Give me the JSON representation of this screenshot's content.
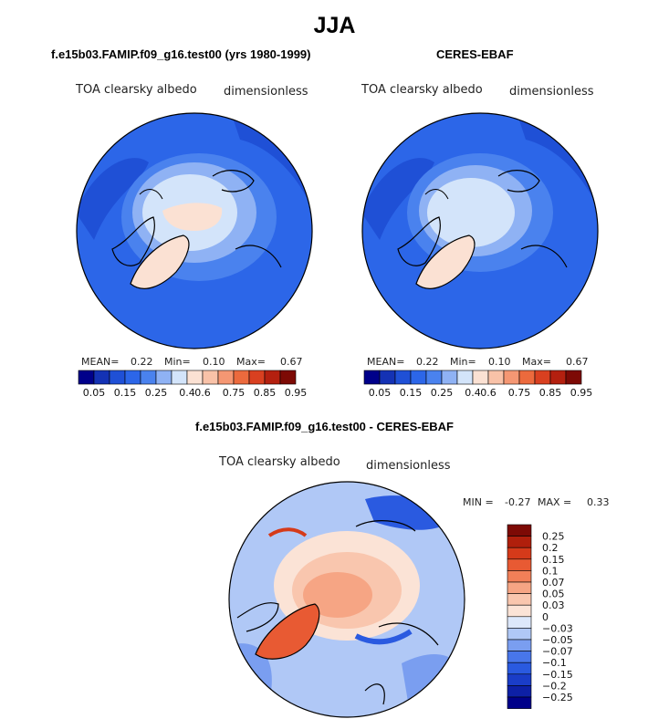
{
  "header": {
    "title": "JJA"
  },
  "colors": {
    "abs_palette": [
      "#00008a",
      "#1432b4",
      "#1f50d6",
      "#2c66e8",
      "#4a82ee",
      "#8fb2f4",
      "#d3e4fa",
      "#fbe1d3",
      "#f9c2a8",
      "#f59773",
      "#ec6a3d",
      "#d94020",
      "#b4200f",
      "#7d0a05"
    ],
    "diff_palette": [
      "#00008a",
      "#0d20a6",
      "#1a3dc8",
      "#2a5ae0",
      "#4876ea",
      "#7a9ef0",
      "#b0c8f6",
      "#dde8fb",
      "#fbe3d6",
      "#f9c6ae",
      "#f6a584",
      "#f17f58",
      "#e85a33",
      "#d53a1a",
      "#b01f0c",
      "#7d0a05"
    ],
    "ocean": "#2c66e8",
    "land": "#4a82ee",
    "arctic": "#d6e6f9",
    "greenland": "#fbdccd"
  },
  "panels": [
    {
      "title": "f.e15b03.FAMIP.f09_g16.test00 (yrs 1980-1999)",
      "field": "TOA clearsky albedo",
      "units": "dimensionless",
      "stats": {
        "mean_label": "MEAN=",
        "mean": "0.22",
        "min_label": "Min=",
        "min": "0.10",
        "max_label": "Max=",
        "max": "0.67"
      }
    },
    {
      "title": "CERES-EBAF",
      "field": "TOA clearsky albedo",
      "units": "dimensionless",
      "stats": {
        "mean_label": "MEAN=",
        "mean": "0.22",
        "min_label": "Min=",
        "min": "0.10",
        "max_label": "Max=",
        "max": "0.67"
      }
    }
  ],
  "diff_panel": {
    "title": "f.e15b03.FAMIP.f09_g16.test00 - CERES-EBAF",
    "field": "TOA clearsky albedo",
    "units": "dimensionless",
    "stats": {
      "min_label": "MIN =",
      "min": "-0.27",
      "max_label": "MAX =",
      "max": "0.33"
    }
  },
  "chart_data": [
    {
      "type": "heatmap",
      "projection": "north polar stereographic",
      "colorbar": {
        "orientation": "horizontal",
        "levels": [
          "0.05",
          "0.15",
          "0.25",
          "0.4",
          "0.6",
          "0.75",
          "0.85",
          "0.95"
        ]
      },
      "stats": {
        "mean": 0.22,
        "min": 0.1,
        "max": 0.67
      }
    },
    {
      "type": "heatmap",
      "projection": "north polar stereographic",
      "colorbar": {
        "orientation": "horizontal",
        "levels": [
          "0.05",
          "0.15",
          "0.25",
          "0.4",
          "0.6",
          "0.75",
          "0.85",
          "0.95"
        ]
      },
      "stats": {
        "mean": 0.22,
        "min": 0.1,
        "max": 0.67
      }
    },
    {
      "type": "heatmap",
      "projection": "north polar stereographic",
      "colorbar": {
        "orientation": "vertical",
        "levels": [
          "0.25",
          "0.2",
          "0.15",
          "0.1",
          "0.07",
          "0.05",
          "0.03",
          "0",
          "−0.03",
          "−0.05",
          "−0.07",
          "−0.1",
          "−0.15",
          "−0.2",
          "−0.25"
        ]
      },
      "stats": {
        "min": -0.27,
        "max": 0.33
      }
    }
  ]
}
